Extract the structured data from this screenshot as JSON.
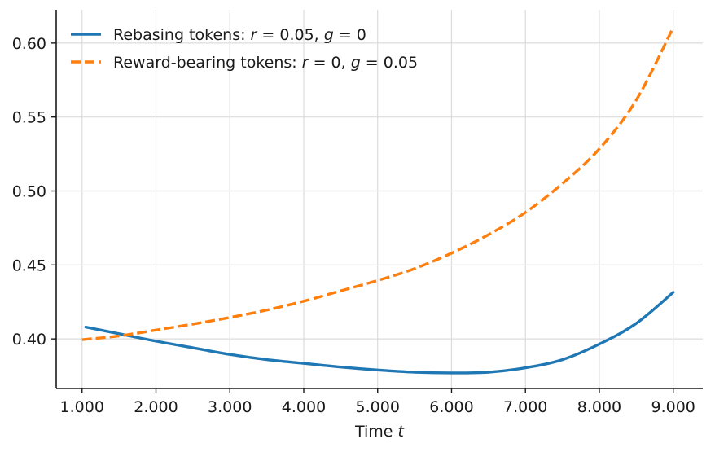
{
  "chart_data": {
    "type": "line",
    "title": "",
    "xlabel": "Time t",
    "ylabel": "",
    "xlim": [
      650,
      9400
    ],
    "ylim": [
      0.3665,
      0.6225
    ],
    "x_ticks": [
      1000,
      2000,
      3000,
      4000,
      5000,
      6000,
      7000,
      8000,
      9000
    ],
    "x_tick_labels": [
      "1.000",
      "2.000",
      "3.000",
      "4.000",
      "5.000",
      "6.000",
      "7.000",
      "8.000",
      "9.000"
    ],
    "y_ticks": [
      0.4,
      0.45,
      0.5,
      0.55,
      0.6
    ],
    "y_tick_labels": [
      "0.40",
      "0.45",
      "0.50",
      "0.55",
      "0.60"
    ],
    "grid": true,
    "legend_position": "top-left",
    "series": [
      {
        "name": "Rebasing tokens: r = 0.05, g = 0",
        "color": "#1f77b4",
        "style": "solid",
        "x": [
          1050,
          1500,
          2000,
          2500,
          3000,
          3500,
          4000,
          4500,
          5000,
          5500,
          6000,
          6500,
          7000,
          7500,
          8000,
          8500,
          9000
        ],
        "y": [
          0.408,
          0.4035,
          0.3985,
          0.394,
          0.3895,
          0.386,
          0.3835,
          0.381,
          0.379,
          0.3775,
          0.377,
          0.3775,
          0.3805,
          0.386,
          0.3965,
          0.4105,
          0.4315
        ]
      },
      {
        "name": "Reward-bearing tokens: r = 0, g = 0.05",
        "color": "#ff7f0e",
        "style": "dashed",
        "x": [
          1000,
          1500,
          2000,
          2500,
          3000,
          3500,
          4000,
          4500,
          5000,
          5500,
          6000,
          6500,
          7000,
          7500,
          8000,
          8500,
          9000
        ],
        "y": [
          0.3995,
          0.402,
          0.406,
          0.41,
          0.4145,
          0.4195,
          0.4255,
          0.4325,
          0.4395,
          0.4475,
          0.458,
          0.4705,
          0.4855,
          0.505,
          0.5285,
          0.5615,
          0.6105
        ]
      }
    ]
  }
}
